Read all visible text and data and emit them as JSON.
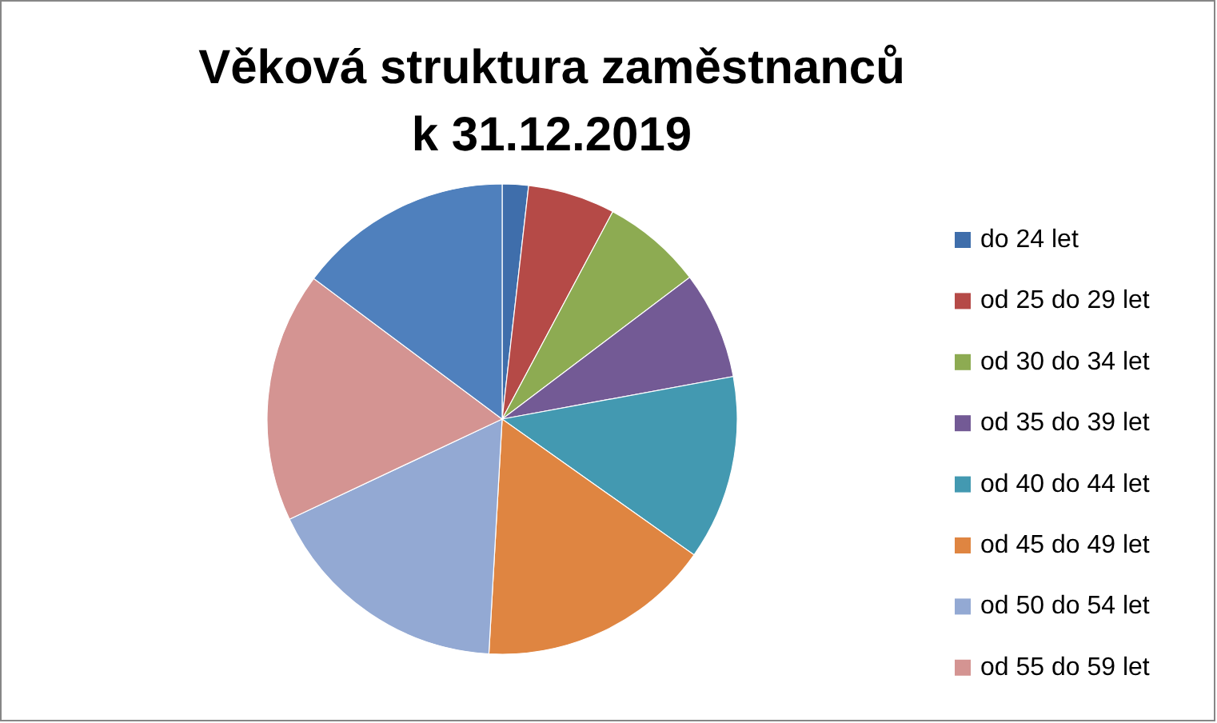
{
  "chart_data": {
    "type": "pie",
    "title": "Věková struktura zaměstnanců\nk  31.12.2019",
    "categories": [
      "do 24 let",
      "od 25 do 29 let",
      "od 30 do 34 let",
      "od 35 do 39 let",
      "od 40 do 44 let",
      "od 45 do 49 let",
      "od 50 do 54 let",
      "od 55 do 59 let",
      null
    ],
    "values": [
      1.8,
      6.0,
      6.9,
      7.4,
      12.7,
      16.1,
      17.1,
      17.2,
      14.8
    ],
    "colors": [
      "#3f6eab",
      "#b54a47",
      "#8dab52",
      "#735a95",
      "#4399b1",
      "#df8541",
      "#93a9d3",
      "#d49492",
      "#4f80bd"
    ],
    "legend": "right"
  }
}
